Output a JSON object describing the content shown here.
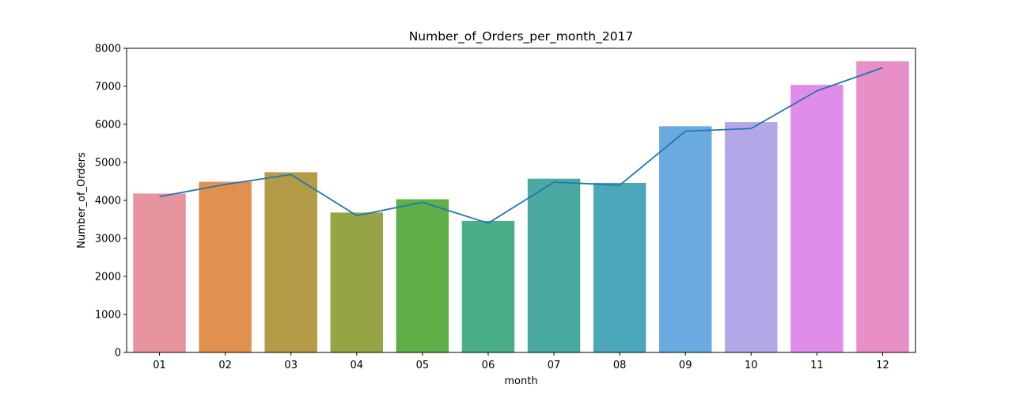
{
  "chart_data": {
    "type": "bar",
    "title": "Number_of_Orders_per_month_2017",
    "xlabel": "month",
    "ylabel": "Number_of_Orders",
    "categories": [
      "01",
      "02",
      "03",
      "04",
      "05",
      "06",
      "07",
      "08",
      "09",
      "10",
      "11",
      "12"
    ],
    "series": [
      {
        "kind": "bar",
        "values": [
          4180,
          4490,
          4740,
          3680,
          4030,
          3460,
          4570,
          4460,
          5950,
          6060,
          7040,
          7660
        ]
      },
      {
        "kind": "line",
        "color": "#1f77b4",
        "values": [
          4100,
          4420,
          4680,
          3600,
          3950,
          3400,
          4480,
          4400,
          5820,
          5890,
          6880,
          7490
        ]
      }
    ],
    "bar_colors": [
      "#e8949f",
      "#e1914f",
      "#b49b48",
      "#97a446",
      "#5fae47",
      "#4aae86",
      "#4aa9a0",
      "#4ba7b9",
      "#6aaae0",
      "#b3a7e8",
      "#df8de8",
      "#e88fc8"
    ],
    "yticks": [
      0,
      1000,
      2000,
      3000,
      4000,
      5000,
      6000,
      7000,
      8000
    ],
    "ylim": [
      0,
      8000
    ],
    "grid": false,
    "legend": "none"
  }
}
